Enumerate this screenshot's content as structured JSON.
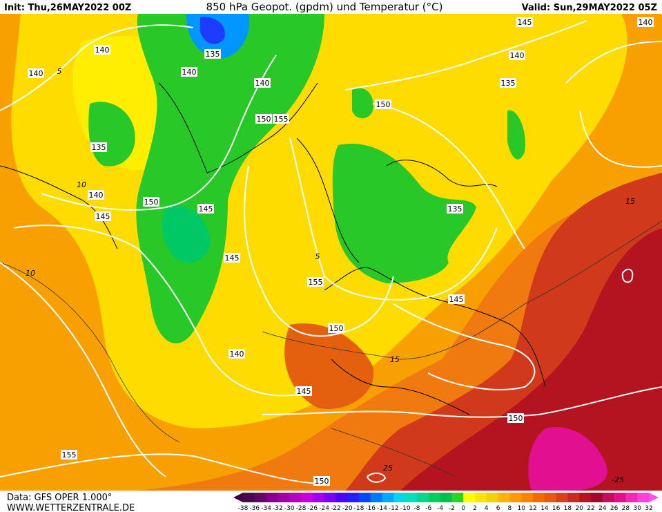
{
  "header": {
    "init": "Init: Thu,26MAY2022 00Z",
    "title": "850 hPa Geopot. (gpdm) und Temperatur (°C)",
    "valid": "Valid: Sun,29MAY2022 05Z"
  },
  "footer": {
    "data_source": "Data: GFS OPER 1.000°",
    "website": "WWW.WETTERZENTRALE.DE"
  },
  "geopotential_labels": [
    "140",
    "140",
    "135",
    "140",
    "140",
    "150",
    "155",
    "135",
    "140",
    "145",
    "150",
    "145",
    "145",
    "155",
    "150",
    "140",
    "145",
    "155",
    "150",
    "150",
    "145",
    "135",
    "150",
    "135",
    "140",
    "145",
    "140"
  ],
  "temperature_labels": [
    "10",
    "5",
    "15",
    "-25",
    "25",
    "15",
    "5",
    "10"
  ],
  "colorbar": {
    "ticks": [
      -38,
      -36,
      -34,
      -32,
      -30,
      -28,
      -26,
      -24,
      -22,
      -20,
      -18,
      -16,
      -14,
      -12,
      -10,
      -8,
      -6,
      -4,
      -2,
      0,
      2,
      4,
      6,
      8,
      10,
      12,
      14,
      16,
      18,
      20,
      22,
      24,
      26,
      28,
      30,
      32
    ],
    "colors": [
      "#3c0040",
      "#50005a",
      "#6a0072",
      "#84008a",
      "#9c00a4",
      "#b400c0",
      "#c800dc",
      "#a000f0",
      "#7800ff",
      "#4c00ff",
      "#2020ff",
      "#0048ff",
      "#0078ff",
      "#00a8ff",
      "#00d4f0",
      "#00e0c0",
      "#00d890",
      "#00cc60",
      "#00c040",
      "#28d428",
      "#ffff00",
      "#ffe600",
      "#ffcc00",
      "#ffb400",
      "#ff9c00",
      "#f88400",
      "#f06c00",
      "#e45a10",
      "#d84418",
      "#c82c1c",
      "#b41420",
      "#a00828",
      "#c0105c",
      "#e01090",
      "#f028c0",
      "#ff40e0",
      "#ff50f0"
    ]
  }
}
